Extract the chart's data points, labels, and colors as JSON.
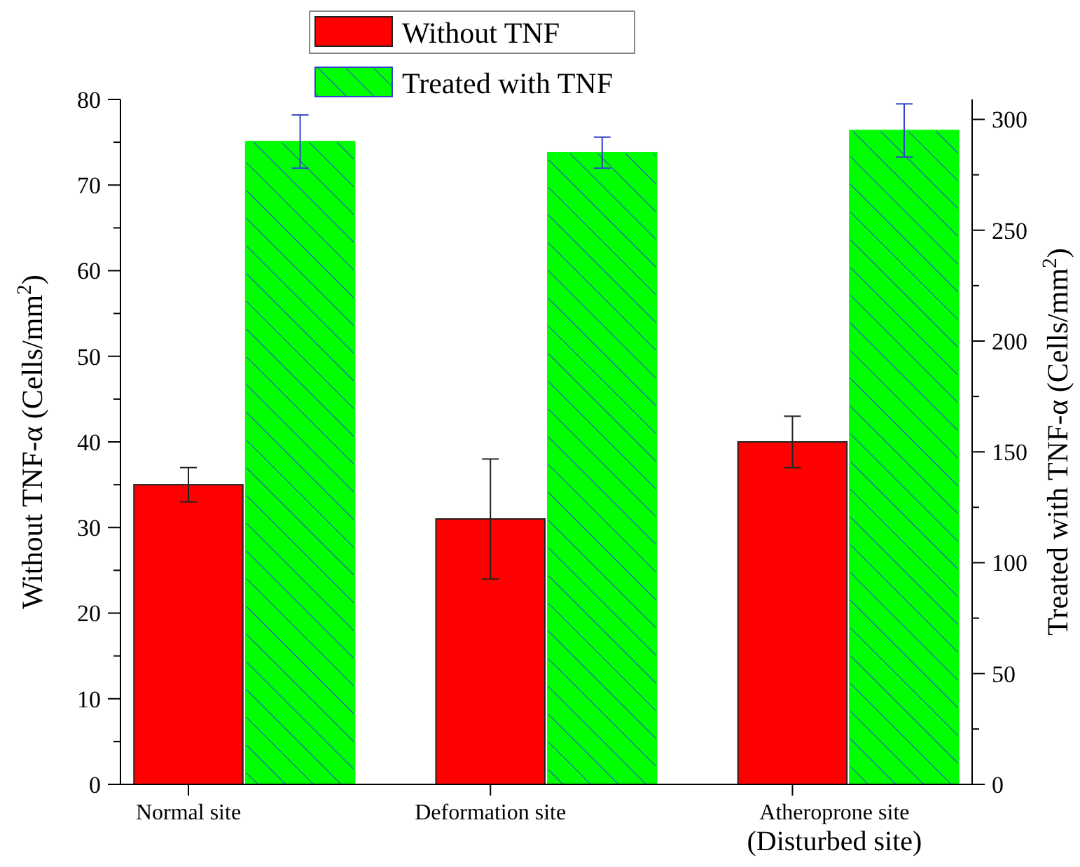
{
  "chart_data": {
    "type": "bar",
    "categories": [
      "Normal site",
      "Deformation site",
      "Atheroprone site\n(Disturbed site)"
    ],
    "ylabel": "Without TNF-α (Cells/mm$^{2}$)",
    "y2label": "Treated with TNF-α (Cells/mm$^{2}$)",
    "series": [
      {
        "name": "Without TNF",
        "color": "#ff0000",
        "values": [
          35,
          31,
          40
        ],
        "errors": [
          2,
          7,
          3
        ]
      },
      {
        "name": "Treated with TNF",
        "color": "#00ff00",
        "axis": "y2",
        "values": [
          290,
          285,
          295
        ],
        "errors": [
          12,
          7,
          12
        ]
      }
    ],
    "ylim": [
      0,
      80
    ],
    "yticks": [
      0,
      {
        "value": 5,
        "label": null
      },
      10,
      {
        "value": 15,
        "label": null
      },
      20,
      {
        "value": 25,
        "label": null
      },
      30,
      {
        "value": 35,
        "label": null
      },
      40,
      {
        "value": 45,
        "label": null
      },
      50,
      {
        "value": 55,
        "label": null
      },
      60,
      {
        "value": 65,
        "label": null
      },
      70,
      {
        "value": 75,
        "label": null
      },
      80
    ],
    "y2lim": [
      0,
      309
    ],
    "y2ticks": [
      0,
      {
        "value": 25,
        "label": null
      },
      50,
      {
        "value": 75,
        "label": null
      },
      100,
      {
        "value": 125,
        "label": null
      },
      150,
      {
        "value": 175,
        "label": null
      },
      200,
      {
        "value": 225,
        "label": null
      },
      250,
      {
        "value": 275,
        "label": null
      },
      300
    ],
    "legend": "top"
  }
}
